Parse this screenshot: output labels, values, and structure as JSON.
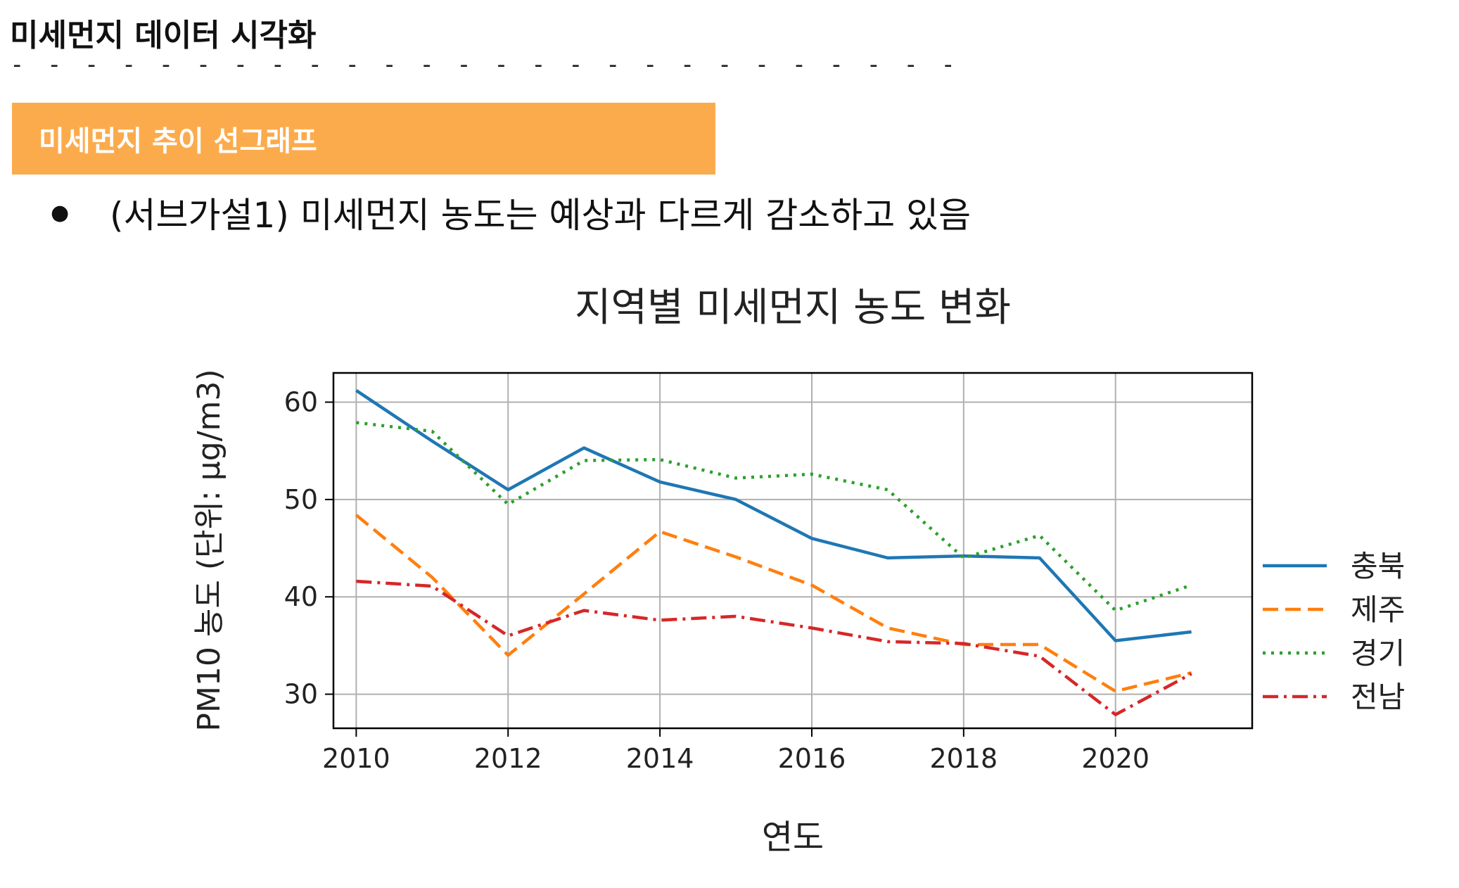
{
  "page": {
    "title": "미세먼지 데이터 시각화",
    "divider": "- - - - - - - - - - - - - - - - - - - - - - - - - -",
    "section_label": "미세먼지 추이 선그래프",
    "bullet_text": "(서브가설1) 미세먼지 농도는 예상과 다르게 감소하고 있음",
    "accent_color": "#fcab4c"
  },
  "chart_data": {
    "type": "line",
    "title": "지역별 미세먼지 농도 변화",
    "xlabel": "연도",
    "ylabel": "PM10 농도 (단위: μg/m3)",
    "x": [
      2010,
      2011,
      2012,
      2013,
      2014,
      2015,
      2016,
      2017,
      2018,
      2019,
      2020,
      2021
    ],
    "xlim": [
      2009.7,
      2021.8
    ],
    "ylim": [
      26.5,
      63
    ],
    "xticks": [
      "2010",
      "2012",
      "2014",
      "2016",
      "2018",
      "2020"
    ],
    "yticks": [
      "30",
      "40",
      "50",
      "60"
    ],
    "grid": true,
    "legend_position": "right",
    "series": [
      {
        "name": "충북",
        "color": "#1f77b4",
        "style": "solid",
        "values": [
          61.2,
          56,
          51,
          55.3,
          51.8,
          50,
          46,
          44,
          44.2,
          44,
          35.5,
          36.4
        ]
      },
      {
        "name": "제주",
        "color": "#ff7f0e",
        "style": "dashed",
        "values": [
          48.4,
          42,
          34,
          40.3,
          46.7,
          44.1,
          41.2,
          36.8,
          35.1,
          35.1,
          30.3,
          32.2
        ]
      },
      {
        "name": "경기",
        "color": "#2ca02c",
        "style": "dotted",
        "values": [
          57.9,
          57,
          49.5,
          54,
          54.1,
          52.2,
          52.6,
          51,
          44,
          46.3,
          38.6,
          41.2
        ]
      },
      {
        "name": "전남",
        "color": "#d62728",
        "style": "dashdot",
        "values": [
          41.6,
          41.1,
          36,
          38.6,
          37.6,
          38,
          36.8,
          35.4,
          35.2,
          33.9,
          27.9,
          32.1
        ]
      }
    ]
  }
}
